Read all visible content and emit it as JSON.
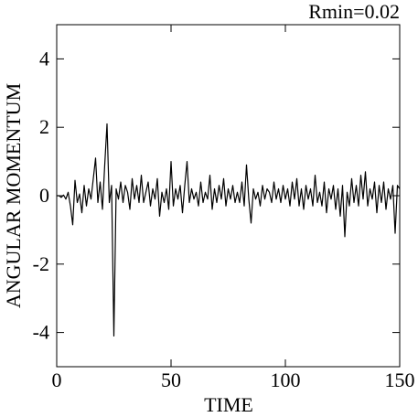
{
  "chart_data": {
    "type": "line",
    "title": "Rmin=0.02",
    "xlabel": "TIME",
    "ylabel": "ANGULAR MOMENTUM",
    "xlim": [
      0,
      150
    ],
    "xticks": [
      0,
      50,
      100,
      150
    ],
    "ylim": [
      -5,
      5
    ],
    "yticks": [
      -4,
      -2,
      0,
      2,
      4
    ],
    "x": [
      0,
      1,
      2,
      3,
      4,
      5,
      6,
      7,
      8,
      9,
      10,
      11,
      12,
      13,
      14,
      15,
      16,
      17,
      18,
      19,
      20,
      21,
      22,
      23,
      24,
      25,
      26,
      27,
      28,
      29,
      30,
      31,
      32,
      33,
      34,
      35,
      36,
      37,
      38,
      39,
      40,
      41,
      42,
      43,
      44,
      45,
      46,
      47,
      48,
      49,
      50,
      51,
      52,
      53,
      54,
      55,
      56,
      57,
      58,
      59,
      60,
      61,
      62,
      63,
      64,
      65,
      66,
      67,
      68,
      69,
      70,
      71,
      72,
      73,
      74,
      75,
      76,
      77,
      78,
      79,
      80,
      81,
      82,
      83,
      84,
      85,
      86,
      87,
      88,
      89,
      90,
      91,
      92,
      93,
      94,
      95,
      96,
      97,
      98,
      99,
      100,
      101,
      102,
      103,
      104,
      105,
      106,
      107,
      108,
      109,
      110,
      111,
      112,
      113,
      114,
      115,
      116,
      117,
      118,
      119,
      120,
      121,
      122,
      123,
      124,
      125,
      126,
      127,
      128,
      129,
      130,
      131,
      132,
      133,
      134,
      135,
      136,
      137,
      138,
      139,
      140,
      141,
      142,
      143,
      144,
      145,
      146,
      147,
      148,
      149,
      150
    ],
    "series": [
      {
        "color": "#000000",
        "values": [
          0,
          0,
          -0.05,
          0.02,
          -0.1,
          0.1,
          -0.3,
          -0.85,
          0.45,
          -0.2,
          0.05,
          -0.5,
          0.3,
          -0.3,
          0.2,
          -0.1,
          0.5,
          1.1,
          -0.2,
          0.4,
          -0.4,
          0.9,
          2.1,
          -0.2,
          0.3,
          -4.1,
          0.2,
          -0.1,
          0.4,
          -0.2,
          0.3,
          0.1,
          -0.4,
          0.5,
          -0.1,
          0.3,
          -0.2,
          0.6,
          -0.2,
          0.1,
          0.4,
          -0.3,
          0.2,
          -0.1,
          0.5,
          -0.6,
          0.1,
          -0.2,
          0.2,
          -0.4,
          1.0,
          -0.3,
          0.2,
          -0.1,
          0.3,
          -0.5,
          0.3,
          1.0,
          -0.2,
          0.2,
          -0.1,
          0.1,
          -0.3,
          0.4,
          -0.2,
          0.1,
          -0.1,
          0.6,
          -0.4,
          0.2,
          -0.2,
          0.3,
          -0.1,
          0.5,
          -0.3,
          0.2,
          -0.1,
          0.3,
          -0.2,
          0.1,
          -0.2,
          0.4,
          -0.3,
          0.9,
          -0.1,
          -0.8,
          0.2,
          -0.1,
          0.1,
          -0.3,
          0.3,
          -0.1,
          0.2,
          0.1,
          -0.2,
          0.4,
          -0.1,
          0.2,
          -0.2,
          0.3,
          -0.1,
          0.2,
          -0.3,
          0.4,
          -0.1,
          0.5,
          -0.3,
          0.2,
          -0.4,
          0.3,
          -0.1,
          0.2,
          -0.3,
          0.6,
          -0.2,
          0.1,
          -0.3,
          0.4,
          -0.5,
          0.2,
          -0.1,
          0.3,
          -0.4,
          0.2,
          -0.6,
          0.3,
          -1.2,
          0.1,
          -0.3,
          0.5,
          -0.2,
          0.3,
          -0.3,
          0.6,
          -0.1,
          0.7,
          -0.3,
          0.2,
          -0.1,
          0.4,
          -0.5,
          0.3,
          -0.2,
          0.4,
          -0.4,
          0.2,
          -0.1,
          0.3,
          -1.1,
          0.3,
          0.2
        ]
      }
    ]
  }
}
